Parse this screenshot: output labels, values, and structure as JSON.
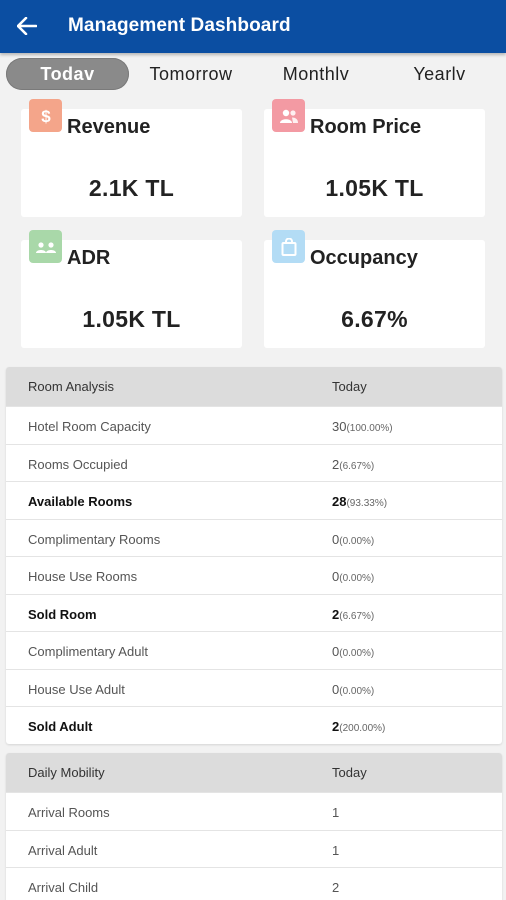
{
  "header": {
    "title": "Management Dashboard"
  },
  "tabs": [
    "Todav",
    "Tomorrow",
    "Monthlv",
    "Yearlv"
  ],
  "cards": [
    {
      "label": "Revenue",
      "value": "2.1K TL",
      "icon": "dollar-icon",
      "color": "#f4a58a"
    },
    {
      "label": "Room Price",
      "value": "1.05K TL",
      "icon": "people-icon",
      "color": "#f39aa3"
    },
    {
      "label": "ADR",
      "value": "1.05K TL",
      "icon": "group-icon",
      "color": "#a9d8a9"
    },
    {
      "label": "Occupancy",
      "value": "6.67%",
      "icon": "bag-icon",
      "color": "#b3dcf5"
    }
  ],
  "room_analysis": {
    "header": [
      "Room Analysis",
      "Today"
    ],
    "rows": [
      {
        "label": "Hotel Room Capacity",
        "value": "30",
        "pct": "(100.00%)",
        "bold": false
      },
      {
        "label": "Rooms Occupied",
        "value": "2",
        "pct": "(6.67%)",
        "bold": false
      },
      {
        "label": "Available Rooms",
        "value": "28",
        "pct": "(93.33%)",
        "bold": true
      },
      {
        "label": "Complimentary Rooms",
        "value": "0",
        "pct": "(0.00%)",
        "bold": false
      },
      {
        "label": "House Use Rooms",
        "value": "0",
        "pct": "(0.00%)",
        "bold": false
      },
      {
        "label": "Sold Room",
        "value": "2",
        "pct": "(6.67%)",
        "bold": true
      },
      {
        "label": "Complimentary Adult",
        "value": "0",
        "pct": "(0.00%)",
        "bold": false
      },
      {
        "label": "House Use Adult",
        "value": "0",
        "pct": "(0.00%)",
        "bold": false
      },
      {
        "label": "Sold Adult",
        "value": "2",
        "pct": "(200.00%)",
        "bold": true
      }
    ]
  },
  "daily_mobility": {
    "header": [
      "Daily Mobility",
      "Today"
    ],
    "rows": [
      {
        "label": "Arrival Rooms",
        "value": "1"
      },
      {
        "label": "Arrival Adult",
        "value": "1"
      },
      {
        "label": "Arrival Child",
        "value": "2"
      }
    ]
  }
}
